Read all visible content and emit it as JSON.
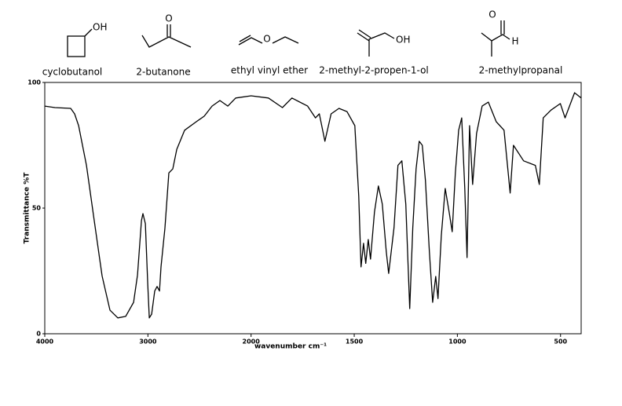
{
  "molecules": [
    {
      "name": "cyclobutanol",
      "atoms": [
        "OH"
      ]
    },
    {
      "name": "2-butanone",
      "atoms": [
        "O"
      ]
    },
    {
      "name": "ethyl vinyl ether",
      "atoms": [
        "O"
      ]
    },
    {
      "name": "2-methyl-2-propen-1-ol",
      "atoms": [
        "OH"
      ]
    },
    {
      "name": "2-methylpropanal",
      "atoms": [
        "O",
        "H"
      ]
    }
  ],
  "chart_data": {
    "type": "line",
    "xlabel": "wavenumber cm⁻¹",
    "ylabel": "Transmittance %T",
    "xlim": [
      4000,
      400
    ],
    "ylim": [
      0,
      100
    ],
    "xbreak": 2000,
    "xbreak_scale": 2,
    "xticks": [
      4000,
      3000,
      2000,
      1500,
      1000,
      500
    ],
    "yticks": [
      0,
      50,
      100
    ],
    "grid": false,
    "series": [
      {
        "name": "spectrum",
        "color": "#000000",
        "x": [
          4000,
          3901,
          3749,
          3711,
          3672,
          3596,
          3520,
          3444,
          3368,
          3292,
          3216,
          3139,
          3101,
          3063,
          3048,
          3025,
          3002,
          2987,
          2964,
          2934,
          2911,
          2888,
          2873,
          2835,
          2797,
          2759,
          2720,
          2644,
          2530,
          2454,
          2378,
          2302,
          2225,
          2149,
          2000,
          1916,
          1848,
          1802,
          1726,
          1688,
          1669,
          1642,
          1612,
          1574,
          1535,
          1497,
          1478,
          1467,
          1455,
          1444,
          1432,
          1421,
          1402,
          1383,
          1364,
          1345,
          1333,
          1307,
          1288,
          1269,
          1250,
          1231,
          1216,
          1200,
          1185,
          1170,
          1155,
          1136,
          1120,
          1105,
          1094,
          1078,
          1059,
          1040,
          1025,
          1010,
          994,
          979,
          964,
          953,
          941,
          926,
          907,
          880,
          850,
          812,
          774,
          744,
          728,
          679,
          622,
          603,
          584,
          546,
          501,
          478,
          432,
          400
        ],
        "values": [
          90.6,
          90,
          89.7,
          87.5,
          82.8,
          67,
          45,
          23,
          9.4,
          6.3,
          6.9,
          12.5,
          23.4,
          45,
          47.8,
          43.8,
          20,
          6.3,
          7.8,
          17,
          18.8,
          17,
          26.6,
          42,
          64,
          65.6,
          73.4,
          81,
          84.4,
          86.6,
          90.6,
          92.8,
          90.6,
          93.8,
          94.7,
          93.8,
          90,
          93.8,
          90.6,
          85.9,
          87.5,
          76.6,
          87.5,
          89.7,
          88.4,
          82.8,
          54.7,
          26.6,
          36,
          28,
          37.5,
          29.7,
          48.4,
          58.8,
          51.6,
          32.8,
          24,
          42.2,
          67,
          68.8,
          51.6,
          10,
          42.2,
          65.6,
          76.6,
          75,
          61,
          32.8,
          12.5,
          22.8,
          14,
          39,
          57.8,
          48.4,
          40.6,
          64,
          81,
          85.9,
          57.8,
          30.3,
          82.8,
          59.4,
          79.7,
          90.6,
          92.2,
          84.4,
          81,
          56,
          75,
          68.8,
          67,
          59.4,
          85.9,
          89,
          91.6,
          85.9,
          95.9,
          93.8
        ]
      }
    ]
  }
}
